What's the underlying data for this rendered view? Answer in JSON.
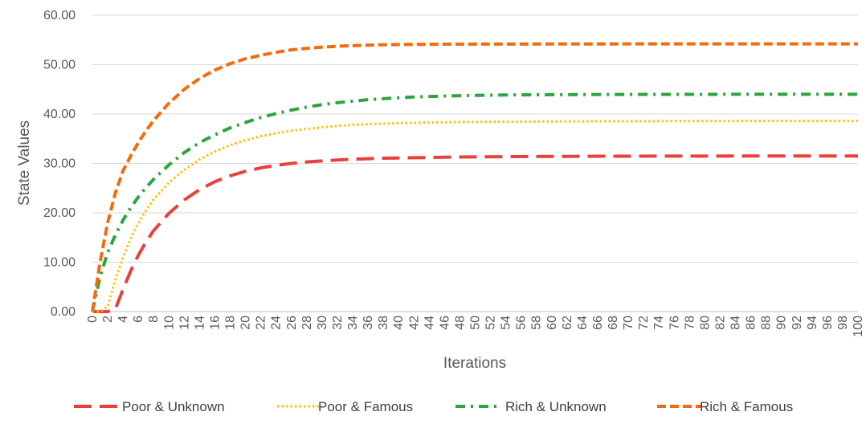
{
  "chart_data": {
    "type": "line",
    "title": "",
    "xlabel": "Iterations",
    "ylabel": "State Values",
    "xlim": [
      0,
      100
    ],
    "ylim": [
      0,
      60
    ],
    "grid": true,
    "legend_position": "bottom",
    "x_ticks": [
      "0",
      "2",
      "4",
      "6",
      "8",
      "10",
      "12",
      "14",
      "16",
      "18",
      "20",
      "22",
      "24",
      "26",
      "28",
      "30",
      "32",
      "34",
      "36",
      "38",
      "40",
      "42",
      "44",
      "46",
      "48",
      "50",
      "52",
      "54",
      "56",
      "58",
      "60",
      "62",
      "64",
      "66",
      "68",
      "70",
      "72",
      "74",
      "76",
      "78",
      "80",
      "82",
      "84",
      "86",
      "88",
      "90",
      "92",
      "94",
      "96",
      "98",
      "100"
    ],
    "y_ticks": [
      "0.00",
      "10.00",
      "20.00",
      "30.00",
      "40.00",
      "50.00",
      "60.00"
    ],
    "x": [
      0,
      1,
      2,
      3,
      4,
      5,
      6,
      7,
      8,
      10,
      12,
      14,
      16,
      18,
      20,
      22,
      24,
      26,
      28,
      30,
      32,
      34,
      36,
      38,
      40,
      42,
      44,
      46,
      48,
      50,
      55,
      60,
      65,
      70,
      75,
      80,
      85,
      90,
      95,
      100
    ],
    "series": [
      {
        "name": "Poor & Unknown",
        "color": "#e8413b",
        "dash": "long-dash",
        "values": [
          0,
          0,
          0,
          0.5,
          4.5,
          8.2,
          11.4,
          14.1,
          16.4,
          19.9,
          22.6,
          24.7,
          26.3,
          27.5,
          28.4,
          29.1,
          29.6,
          30.0,
          30.3,
          30.5,
          30.7,
          30.85,
          30.95,
          31.05,
          31.1,
          31.15,
          31.2,
          31.25,
          31.3,
          31.33,
          31.38,
          31.42,
          31.45,
          31.47,
          31.48,
          31.49,
          31.5,
          31.5,
          31.5,
          31.5
        ]
      },
      {
        "name": "Poor & Famous",
        "color": "#ffc000",
        "dash": "dotted",
        "values": [
          0,
          0,
          1.0,
          6.5,
          11.0,
          14.8,
          17.9,
          20.5,
          22.7,
          26.1,
          28.7,
          30.8,
          32.4,
          33.7,
          34.7,
          35.5,
          36.1,
          36.6,
          37.0,
          37.3,
          37.6,
          37.8,
          37.95,
          38.05,
          38.15,
          38.22,
          38.28,
          38.33,
          38.37,
          38.4,
          38.46,
          38.5,
          38.53,
          38.55,
          38.57,
          38.58,
          38.59,
          38.6,
          38.6,
          38.6
        ]
      },
      {
        "name": "Rich & Unknown",
        "color": "#2ca540",
        "dash": "dash-dot",
        "values": [
          0,
          7.0,
          12.0,
          15.5,
          18.5,
          21.0,
          23.2,
          25.1,
          26.8,
          29.7,
          32.2,
          34.2,
          35.8,
          37.2,
          38.3,
          39.3,
          40.1,
          40.8,
          41.4,
          41.9,
          42.3,
          42.6,
          42.9,
          43.1,
          43.3,
          43.45,
          43.55,
          43.65,
          43.72,
          43.78,
          43.87,
          43.92,
          43.95,
          43.97,
          43.98,
          43.99,
          44.0,
          44.0,
          44.0,
          44.0
        ]
      },
      {
        "name": "Rich & Famous",
        "color": "#f46b0c",
        "dash": "dashed",
        "values": [
          0,
          10.0,
          18.0,
          24.0,
          28.5,
          31.5,
          34.2,
          36.6,
          38.7,
          42.2,
          45.0,
          47.2,
          48.9,
          50.2,
          51.2,
          51.9,
          52.5,
          53.0,
          53.3,
          53.55,
          53.72,
          53.85,
          53.95,
          54.02,
          54.07,
          54.1,
          54.12,
          54.14,
          54.15,
          54.16,
          54.17,
          54.18,
          54.19,
          54.2,
          54.2,
          54.2,
          54.2,
          54.2,
          54.2,
          54.2
        ]
      }
    ]
  }
}
